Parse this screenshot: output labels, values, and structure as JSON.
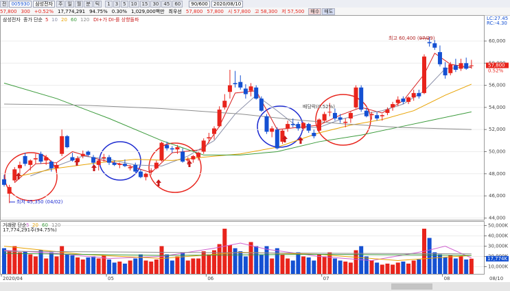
{
  "toolbar": {
    "market": "전",
    "code": "005930",
    "name": "삼성전자",
    "periods": [
      "주",
      "일",
      "월",
      "분",
      "틱"
    ],
    "intervals": [
      "1",
      "3",
      "5",
      "10",
      "15",
      "30",
      "45",
      "60"
    ],
    "count": "90/600",
    "date": "2020/08/10"
  },
  "quote": {
    "price": "57,800",
    "change": "300",
    "rate": "+0.52%",
    "volume": "17,774,291",
    "vol_rate": "94.75%",
    "turnover": "0.30%",
    "amount": "1,029,000백만",
    "tag": "최우선",
    "ask": "57,800",
    "bid": "57,800",
    "open": "시 57,800",
    "high": "고 58,300",
    "low": "저 57,500",
    "buy": "매수",
    "sell": "매도"
  },
  "chart_data": {
    "type": "candlestick",
    "legend_name": "삼성전자",
    "legend_ma": "종가 단순",
    "legend_signal": "DI+가 DI-를 상향돌파",
    "lc": "LC:27.45",
    "rc": "RC:-4.30",
    "price_box": "57,800",
    "rate_box": "0.52%",
    "ylim": [
      43900,
      62350
    ],
    "yticks": [
      {
        "value": 44000,
        "label": "44,000"
      },
      {
        "value": 46000,
        "label": "46,000"
      },
      {
        "value": 48000,
        "label": "48,000"
      },
      {
        "value": 50000,
        "label": "50,000"
      },
      {
        "value": 52000,
        "label": "52,000"
      },
      {
        "value": 54000,
        "label": "54,000"
      },
      {
        "value": 56000,
        "label": "56,000"
      },
      {
        "value": 58000,
        "label": "58,000"
      },
      {
        "value": 60000,
        "label": "60,000"
      }
    ],
    "up_color": "#e8241c",
    "down_color": "#1450d2",
    "candles": [
      [
        47500,
        47900,
        46850,
        47000
      ],
      [
        46200,
        47000,
        45350,
        46800
      ],
      [
        47400,
        48600,
        47200,
        48400
      ],
      [
        48500,
        49100,
        48000,
        48800
      ],
      [
        49600,
        49900,
        48700,
        48900
      ],
      [
        48800,
        49300,
        48300,
        49200
      ],
      [
        49300,
        49800,
        48900,
        49400
      ],
      [
        49800,
        50000,
        48900,
        49100
      ],
      [
        49200,
        49700,
        48800,
        49500
      ],
      [
        49100,
        49200,
        48200,
        48500
      ],
      [
        48500,
        49000,
        48200,
        48800
      ],
      [
        49800,
        52000,
        49600,
        51400
      ],
      [
        51400,
        51500,
        50300,
        50400
      ],
      [
        49500,
        49900,
        49100,
        49200
      ],
      [
        49100,
        49600,
        48900,
        49400
      ],
      [
        49600,
        50100,
        49400,
        49800
      ],
      [
        50000,
        50100,
        49600,
        49700
      ],
      [
        49500,
        49700,
        48500,
        49000
      ],
      [
        48800,
        49300,
        48300,
        49200
      ],
      [
        49400,
        49800,
        49100,
        49500
      ],
      [
        49500,
        49700,
        48800,
        49000
      ],
      [
        49000,
        49200,
        48700,
        48800
      ],
      [
        48800,
        49000,
        48500,
        48900
      ],
      [
        48900,
        49300,
        48600,
        48700
      ],
      [
        48500,
        48800,
        48300,
        48600
      ],
      [
        48800,
        49000,
        48100,
        48200
      ],
      [
        48200,
        48400,
        47600,
        47700
      ],
      [
        47700,
        48100,
        47400,
        48000
      ],
      [
        48200,
        48500,
        47900,
        48300
      ],
      [
        48500,
        49200,
        48400,
        49000
      ],
      [
        49200,
        50900,
        49100,
        50800
      ],
      [
        50600,
        50900,
        50100,
        50300
      ],
      [
        50300,
        50500,
        49900,
        50200
      ],
      [
        50200,
        50600,
        49800,
        50400
      ],
      [
        50000,
        50300,
        49000,
        49100
      ],
      [
        49200,
        49500,
        48800,
        49300
      ],
      [
        49300,
        49700,
        49000,
        49600
      ],
      [
        49500,
        50000,
        49200,
        49900
      ],
      [
        50000,
        51200,
        49800,
        51000
      ],
      [
        51200,
        51700,
        50800,
        51300
      ],
      [
        51600,
        52300,
        51100,
        52100
      ],
      [
        52300,
        54100,
        52200,
        53800
      ],
      [
        54000,
        55200,
        53800,
        54600
      ],
      [
        55400,
        57400,
        54800,
        56000
      ],
      [
        56200,
        57300,
        55800,
        56100
      ],
      [
        56300,
        56900,
        55600,
        55800
      ],
      [
        55700,
        56100,
        54800,
        55200
      ],
      [
        55500,
        56200,
        55000,
        55900
      ],
      [
        55800,
        56000,
        54700,
        54800
      ],
      [
        54800,
        55000,
        53600,
        53700
      ],
      [
        53200,
        53400,
        51600,
        51800
      ],
      [
        51800,
        52300,
        51300,
        52100
      ],
      [
        52000,
        52200,
        50200,
        50300
      ],
      [
        50900,
        52000,
        50700,
        51900
      ],
      [
        52100,
        52800,
        51800,
        52500
      ],
      [
        52500,
        53000,
        52200,
        52400
      ],
      [
        52500,
        52700,
        51900,
        52100
      ],
      [
        52100,
        52700,
        51900,
        52600
      ],
      [
        52500,
        52600,
        51700,
        51900
      ],
      [
        51700,
        52000,
        51200,
        51400
      ],
      [
        51900,
        53000,
        51800,
        52900
      ],
      [
        52800,
        53600,
        52600,
        53400
      ],
      [
        53600,
        54400,
        53200,
        53600
      ],
      [
        53500,
        53900,
        52800,
        53000
      ],
      [
        53100,
        53400,
        52600,
        52900
      ],
      [
        52600,
        53000,
        52200,
        52700
      ],
      [
        53000,
        53600,
        52600,
        53500
      ],
      [
        54000,
        56000,
        53900,
        55800
      ],
      [
        55800,
        56000,
        53600,
        53800
      ],
      [
        53700,
        54000,
        53100,
        53200
      ],
      [
        53300,
        53600,
        52900,
        53400
      ],
      [
        53300,
        53600,
        52800,
        53000
      ],
      [
        53200,
        53400,
        52800,
        53300
      ],
      [
        53500,
        54000,
        53300,
        53800
      ],
      [
        54000,
        54500,
        53700,
        54300
      ],
      [
        54400,
        55000,
        54100,
        54700
      ],
      [
        54800,
        55000,
        54300,
        54500
      ],
      [
        54500,
        55000,
        54300,
        54900
      ],
      [
        54900,
        55600,
        54600,
        55300
      ],
      [
        55300,
        55600,
        54800,
        55000
      ],
      [
        55300,
        58800,
        55200,
        58600
      ],
      [
        59900,
        60400,
        59500,
        59800
      ],
      [
        59800,
        60100,
        59200,
        59400
      ],
      [
        59000,
        59600,
        57700,
        57900
      ],
      [
        57600,
        58100,
        56600,
        56900
      ],
      [
        57100,
        58100,
        56900,
        57900
      ],
      [
        57800,
        58400,
        57200,
        57400
      ],
      [
        57500,
        58400,
        57300,
        58000
      ],
      [
        58000,
        58500,
        57400,
        57500
      ],
      [
        57800,
        58300,
        57500,
        57800
      ]
    ],
    "ma": [
      {
        "name": "5",
        "color": "#d81e1e",
        "x": [
          2,
          6,
          10,
          13,
          18,
          24,
          28,
          32,
          38,
          41,
          44,
          48,
          52,
          56,
          60,
          64,
          68,
          72,
          76,
          80,
          82,
          85,
          89
        ],
        "values": [
          47200,
          48900,
          49000,
          50000,
          49300,
          48700,
          48100,
          49900,
          50200,
          52300,
          55300,
          55500,
          52000,
          52200,
          52400,
          53300,
          54000,
          53500,
          54600,
          57000,
          58900,
          57900,
          57600
        ]
      },
      {
        "name": "10",
        "color": "#8a8fa8",
        "x": [
          5,
          10,
          15,
          20,
          25,
          30,
          35,
          40,
          44,
          48,
          52,
          56,
          60,
          64,
          68,
          72,
          76,
          80,
          84,
          89
        ],
        "values": [
          47800,
          48700,
          49600,
          49300,
          48800,
          48700,
          49600,
          51000,
          53400,
          55100,
          53700,
          52200,
          52200,
          52900,
          53400,
          53700,
          54300,
          55500,
          57500,
          57700
        ]
      },
      {
        "name": "20",
        "color": "#e8a200",
        "x": [
          3,
          10,
          18,
          25,
          32,
          38,
          45,
          52,
          60,
          66,
          72,
          78,
          84,
          89
        ],
        "values": [
          47800,
          48500,
          49000,
          49300,
          49200,
          49500,
          49800,
          50400,
          51700,
          52400,
          52900,
          53700,
          55100,
          56100
        ]
      },
      {
        "name": "60",
        "color": "#3a9a3a",
        "x": [
          0,
          10,
          20,
          30,
          38,
          45,
          52,
          60,
          68,
          75,
          82,
          89
        ],
        "values": [
          56200,
          54800,
          53000,
          51000,
          49700,
          49700,
          50000,
          50900,
          51500,
          52200,
          52900,
          53600
        ]
      },
      {
        "name": "120",
        "color": "#8c8c8c",
        "x": [
          0,
          15,
          30,
          45,
          55,
          65,
          75,
          89
        ],
        "values": [
          54300,
          54200,
          53900,
          53400,
          52900,
          52500,
          52200,
          52000
        ]
      }
    ],
    "x_labels": [
      "2020/04",
      "05",
      "06",
      "07",
      "08"
    ],
    "x_end": "08/10",
    "annotations": {
      "high": "최고 60,400 (07/29)",
      "low": "최저 45,350 (04/02)",
      "dividend": "배당락(0.52%)"
    },
    "volume": {
      "legend": "거래량 단순",
      "legend_total": "17,774,291주(94.75%)",
      "box": "17,774K",
      "ylim": [
        3000,
        53000
      ],
      "yticks": [
        {
          "value": 10000,
          "label": "10,000K"
        },
        {
          "value": 20000,
          "label": "20,000K"
        },
        {
          "value": 30000,
          "label": "30,000K"
        },
        {
          "value": 40000,
          "label": "40,000K"
        },
        {
          "value": 50000,
          "label": "50,000K"
        }
      ],
      "values": [
        28000,
        26000,
        30000,
        24000,
        25000,
        22000,
        20000,
        26000,
        18000,
        24000,
        20000,
        30000,
        22000,
        21000,
        19000,
        17000,
        19000,
        20000,
        18000,
        21000,
        17000,
        14000,
        15000,
        13000,
        16000,
        18000,
        22000,
        16000,
        15000,
        17000,
        30000,
        22000,
        16000,
        20000,
        24000,
        16000,
        18000,
        18000,
        25000,
        22000,
        26000,
        32000,
        47000,
        31000,
        28000,
        25000,
        20000,
        34000,
        30000,
        22000,
        30000,
        18000,
        28000,
        22000,
        18000,
        16000,
        24000,
        20000,
        19000,
        16000,
        22000,
        20000,
        24000,
        18000,
        16000,
        15000,
        14000,
        26000,
        30000,
        20000,
        16000,
        14000,
        12000,
        13000,
        12000,
        14000,
        15000,
        13000,
        16000,
        17000,
        47000,
        38000,
        24000,
        22000,
        19000,
        21000,
        18000,
        20000,
        17000,
        17774
      ],
      "ma": [
        {
          "name": "5",
          "color": "#d060d0",
          "x": [
            0,
            10,
            20,
            30,
            40,
            45,
            50,
            60,
            70,
            80,
            84,
            89
          ],
          "values": [
            26000,
            23000,
            18000,
            20000,
            28000,
            33000,
            27000,
            20000,
            16000,
            25000,
            30000,
            18500
          ]
        },
        {
          "name": "20",
          "color": "#e8a200",
          "x": [
            0,
            15,
            30,
            45,
            60,
            75,
            89
          ],
          "values": [
            30000,
            22000,
            18000,
            24000,
            22000,
            16000,
            21000
          ]
        },
        {
          "name": "60",
          "color": "#3a9a3a",
          "x": [
            0,
            30,
            60,
            89
          ],
          "values": [
            23000,
            21000,
            22000,
            21000
          ]
        },
        {
          "name": "120",
          "color": "#8c8c8c",
          "x": [
            0,
            45,
            89
          ],
          "values": [
            25000,
            23500,
            22500
          ]
        }
      ]
    }
  }
}
